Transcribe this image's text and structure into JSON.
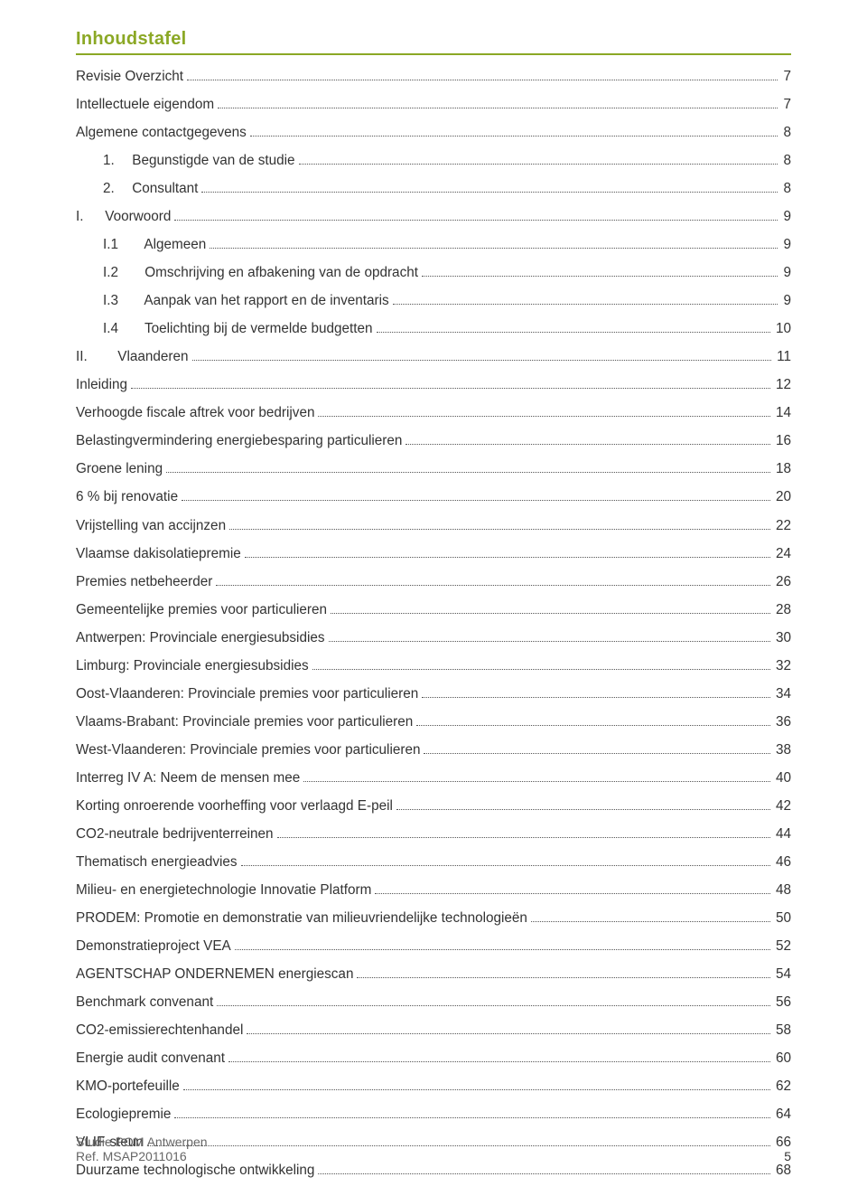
{
  "colors": {
    "accent": "#8ba825",
    "text": "#333333",
    "footer": "#666666",
    "dots": "#555555",
    "bg": "#ffffff"
  },
  "typography": {
    "family": "Century Gothic",
    "title_size_pt": 15,
    "body_size_pt": 11.5,
    "footer_size_pt": 10.5,
    "title_weight": "bold"
  },
  "title": "Inhoudstafel",
  "toc": [
    {
      "indent": 0,
      "num": "",
      "text": "Revisie Overzicht",
      "page": "7"
    },
    {
      "indent": 0,
      "num": "",
      "text": "Intellectuele eigendom",
      "page": "7"
    },
    {
      "indent": 0,
      "num": "",
      "text": "Algemene contactgegevens",
      "page": "8"
    },
    {
      "indent": 1,
      "num": "1.",
      "text": "Begunstigde van de studie",
      "page": "8"
    },
    {
      "indent": 1,
      "num": "2.",
      "text": "Consultant",
      "page": "8"
    },
    {
      "indent": 0,
      "num": "I.",
      "text": "Voorwoord",
      "page": "9"
    },
    {
      "indent": 1,
      "num": "I.1",
      "text": "Algemeen",
      "page": "9"
    },
    {
      "indent": 1,
      "num": "I.2",
      "text": "Omschrijving en afbakening van de opdracht",
      "page": "9"
    },
    {
      "indent": 1,
      "num": "I.3",
      "text": "Aanpak van het rapport en de inventaris",
      "page": "9"
    },
    {
      "indent": 1,
      "num": "I.4",
      "text": "Toelichting bij de vermelde budgetten",
      "page": "10"
    },
    {
      "indent": 0,
      "num": "II.",
      "text": "Vlaanderen",
      "page": "11"
    },
    {
      "indent": 0,
      "num": "",
      "text": "Inleiding",
      "page": "12"
    },
    {
      "indent": 0,
      "num": "",
      "text": "Verhoogde fiscale aftrek voor bedrijven",
      "page": "14"
    },
    {
      "indent": 0,
      "num": "",
      "text": "Belastingvermindering energiebesparing particulieren",
      "page": "16"
    },
    {
      "indent": 0,
      "num": "",
      "text": "Groene lening",
      "page": "18"
    },
    {
      "indent": 0,
      "num": "",
      "text": "6 % bij renovatie",
      "page": "20"
    },
    {
      "indent": 0,
      "num": "",
      "text": "Vrijstelling van accijnzen",
      "page": "22"
    },
    {
      "indent": 0,
      "num": "",
      "text": "Vlaamse dakisolatiepremie",
      "page": "24"
    },
    {
      "indent": 0,
      "num": "",
      "text": "Premies netbeheerder",
      "page": "26"
    },
    {
      "indent": 0,
      "num": "",
      "text": "Gemeentelijke premies voor particulieren",
      "page": "28"
    },
    {
      "indent": 0,
      "num": "",
      "text": "Antwerpen: Provinciale energiesubsidies",
      "page": "30"
    },
    {
      "indent": 0,
      "num": "",
      "text": "Limburg: Provinciale energiesubsidies",
      "page": "32"
    },
    {
      "indent": 0,
      "num": "",
      "text": "Oost-Vlaanderen: Provinciale premies voor particulieren",
      "page": "34"
    },
    {
      "indent": 0,
      "num": "",
      "text": "Vlaams-Brabant: Provinciale premies voor particulieren",
      "page": "36"
    },
    {
      "indent": 0,
      "num": "",
      "text": "West-Vlaanderen: Provinciale premies voor particulieren",
      "page": "38"
    },
    {
      "indent": 0,
      "num": "",
      "text": "Interreg IV A: Neem de mensen mee",
      "page": "40"
    },
    {
      "indent": 0,
      "num": "",
      "text": "Korting onroerende voorheffing voor verlaagd E-peil",
      "page": "42"
    },
    {
      "indent": 0,
      "num": "",
      "text": "CO2-neutrale bedrijventerreinen",
      "page": "44"
    },
    {
      "indent": 0,
      "num": "",
      "text": "Thematisch energieadvies",
      "page": "46"
    },
    {
      "indent": 0,
      "num": "",
      "text": "Milieu- en energietechnologie Innovatie Platform",
      "page": "48"
    },
    {
      "indent": 0,
      "num": "",
      "text": "PRODEM: Promotie en demonstratie van milieuvriendelijke technologieën",
      "page": "50"
    },
    {
      "indent": 0,
      "num": "",
      "text": "Demonstratieproject VEA",
      "page": "52"
    },
    {
      "indent": 0,
      "num": "",
      "text": "AGENTSCHAP ONDERNEMEN energiescan",
      "page": "54"
    },
    {
      "indent": 0,
      "num": "",
      "text": "Benchmark convenant",
      "page": "56"
    },
    {
      "indent": 0,
      "num": "",
      "text": "CO2-emissierechtenhandel",
      "page": "58"
    },
    {
      "indent": 0,
      "num": "",
      "text": "Energie audit convenant",
      "page": "60"
    },
    {
      "indent": 0,
      "num": "",
      "text": "KMO-portefeuille",
      "page": "62"
    },
    {
      "indent": 0,
      "num": "",
      "text": "Ecologiepremie",
      "page": "64"
    },
    {
      "indent": 0,
      "num": "",
      "text": "VLIF-steun",
      "page": "66"
    },
    {
      "indent": 0,
      "num": "",
      "text": "Duurzame technologische ontwikkeling",
      "page": "68"
    }
  ],
  "footer": {
    "line1": "Studie POM Antwerpen",
    "line2": "Ref. MSAP2011016",
    "page": "5"
  }
}
